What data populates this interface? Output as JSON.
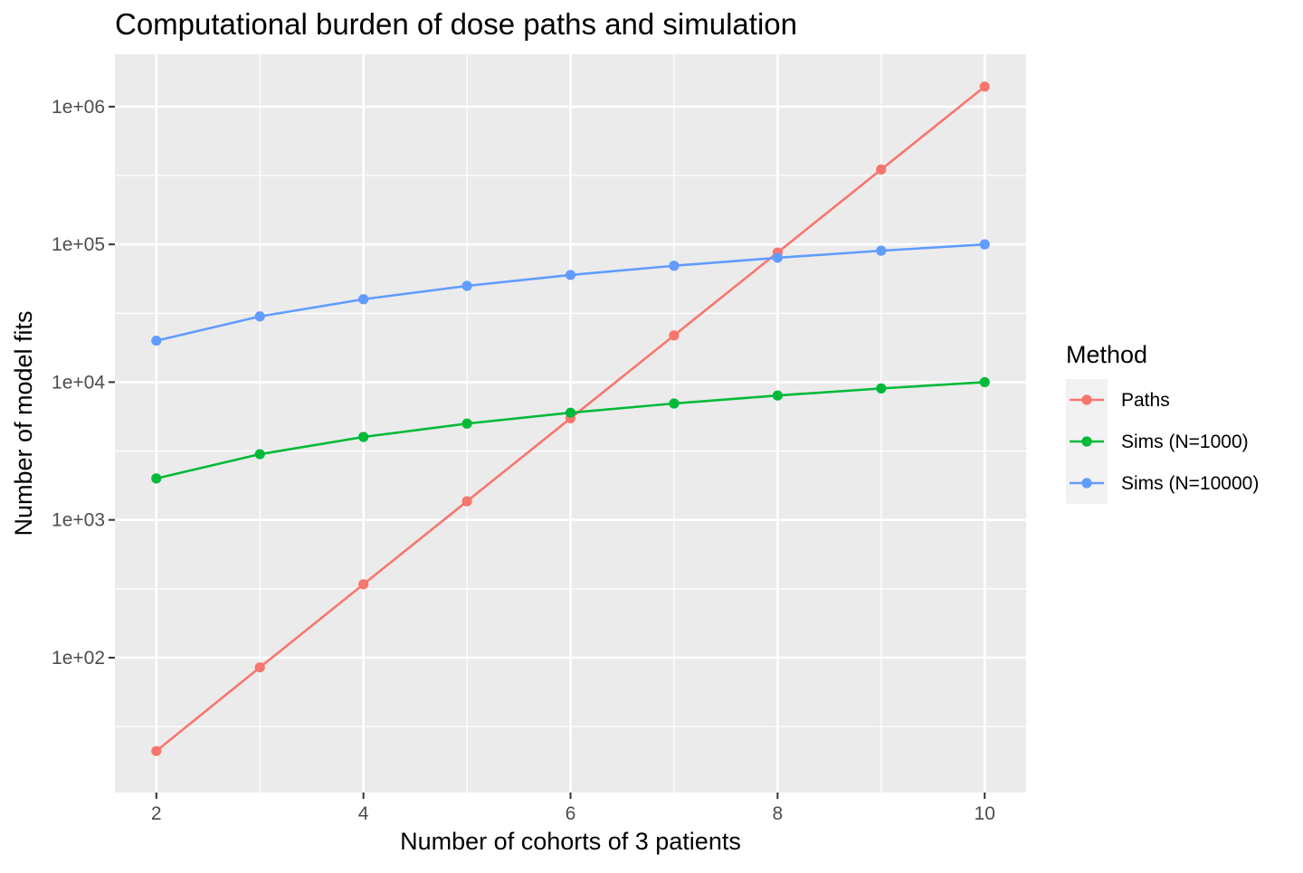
{
  "chart_data": {
    "type": "line",
    "title": "Computational burden of dose paths and simulation",
    "xlabel": "Number of cohorts of 3 patients",
    "ylabel": "Number of model fits",
    "x_scale": "linear",
    "y_scale": "log10",
    "xlim": [
      1.6,
      10.4
    ],
    "ylim": [
      10.5,
      2400000
    ],
    "x_ticks": [
      2,
      4,
      6,
      8,
      10
    ],
    "x_tick_labels": [
      "2",
      "4",
      "6",
      "8",
      "10"
    ],
    "y_ticks": [
      100,
      1000,
      10000,
      100000,
      1000000
    ],
    "y_tick_labels": [
      "1e+02",
      "1e+03",
      "1e+04",
      "1e+05",
      "1e+06"
    ],
    "grid": true,
    "legend": {
      "title": "Method",
      "placement": "right"
    },
    "x": [
      2,
      3,
      4,
      5,
      6,
      7,
      8,
      9,
      10
    ],
    "series": [
      {
        "name": "Paths",
        "color": "#F8766D",
        "values": [
          21,
          85,
          341,
          1365,
          5461,
          21845,
          87381,
          349525,
          1398101
        ]
      },
      {
        "name": "Sims (N=1000)",
        "color": "#00BA38",
        "values": [
          2000,
          3000,
          4000,
          5000,
          6000,
          7000,
          8000,
          9000,
          10000
        ]
      },
      {
        "name": "Sims (N=10000)",
        "color": "#619CFF",
        "values": [
          20000,
          30000,
          40000,
          50000,
          60000,
          70000,
          80000,
          90000,
          100000
        ]
      }
    ]
  },
  "theme": {
    "panel_background": "#EBEBEB",
    "grid_color": "#FFFFFF",
    "tick_color": "#333333",
    "tick_label_color": "#4D4D4D",
    "legend_key_background": "#F2F2F2"
  }
}
